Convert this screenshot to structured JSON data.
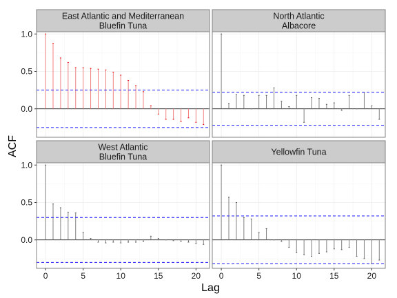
{
  "figure": {
    "xlabel": "Lag",
    "ylabel": "ACF"
  },
  "colors": {
    "strip_bg": "#cccccc",
    "panel_border": "#808080",
    "grid": "#ececec",
    "bar_default": "#7f7f7f",
    "bar_highlight": "#f08080",
    "tip_highlight": "#e60000",
    "ci_line": "#1a1aff",
    "zero_line": "#000000"
  },
  "chart_data": [
    {
      "type": "bar",
      "title": "East Atlantic and Mediterranean\nBluefin Tuna",
      "x": [
        0,
        1,
        2,
        3,
        4,
        5,
        6,
        7,
        8,
        9,
        10,
        11,
        12,
        13,
        14,
        15,
        16,
        17,
        18,
        19,
        20,
        21
      ],
      "values": [
        1.0,
        0.87,
        0.68,
        0.62,
        0.55,
        0.55,
        0.54,
        0.53,
        0.52,
        0.49,
        0.45,
        0.38,
        0.31,
        0.23,
        0.04,
        -0.07,
        -0.14,
        -0.14,
        -0.17,
        -0.12,
        -0.18,
        -0.21
      ],
      "highlight": [
        true,
        true,
        true,
        true,
        true,
        true,
        true,
        true,
        true,
        true,
        true,
        true,
        true,
        true,
        true,
        true,
        true,
        true,
        true,
        true,
        true,
        true
      ],
      "ci": [
        0.25,
        -0.25
      ],
      "xlim": [
        -1.2,
        21.8
      ],
      "ylim": [
        -0.38,
        1.03
      ]
    },
    {
      "type": "bar",
      "title": "North Atlantic\nAlbacore",
      "x": [
        0,
        1,
        2,
        3,
        4,
        5,
        6,
        7,
        8,
        9,
        10,
        11,
        12,
        13,
        14,
        15,
        16,
        17,
        18,
        19,
        20,
        21
      ],
      "values": [
        1.0,
        0.07,
        0.19,
        0.18,
        0.0,
        0.18,
        0.18,
        0.28,
        0.1,
        0.03,
        0.18,
        -0.18,
        0.15,
        0.14,
        0.06,
        0.08,
        -0.02,
        0.18,
        0.0,
        0.22,
        0.04,
        -0.14
      ],
      "highlight": [
        false,
        false,
        false,
        false,
        false,
        false,
        false,
        false,
        false,
        false,
        false,
        false,
        false,
        false,
        false,
        false,
        false,
        false,
        false,
        false,
        false,
        false
      ],
      "ci": [
        0.22,
        -0.22
      ],
      "xlim": [
        -1.2,
        21.8
      ],
      "ylim": [
        -0.38,
        1.03
      ]
    },
    {
      "type": "bar",
      "title": "West Atlantic\nBluefin Tuna",
      "x": [
        0,
        1,
        2,
        3,
        4,
        5,
        6,
        7,
        8,
        9,
        10,
        11,
        12,
        13,
        14,
        15,
        16,
        17,
        18,
        19,
        20,
        21
      ],
      "values": [
        1.0,
        0.48,
        0.43,
        0.37,
        0.36,
        0.1,
        0.02,
        -0.03,
        -0.04,
        -0.03,
        -0.04,
        -0.03,
        -0.03,
        -0.02,
        0.05,
        0.02,
        0.0,
        -0.01,
        -0.02,
        -0.03,
        -0.05,
        -0.06
      ],
      "highlight": [
        false,
        false,
        false,
        false,
        false,
        false,
        false,
        false,
        false,
        false,
        false,
        false,
        false,
        false,
        false,
        false,
        false,
        false,
        false,
        false,
        false,
        false
      ],
      "ci": [
        0.3,
        -0.3
      ],
      "xlim": [
        -1.2,
        21.8
      ],
      "ylim": [
        -0.38,
        1.03
      ]
    },
    {
      "type": "bar",
      "title": "Yellowfin Tuna",
      "x": [
        0,
        1,
        2,
        3,
        4,
        5,
        6,
        7,
        8,
        9,
        10,
        11,
        12,
        13,
        14,
        15,
        16,
        17,
        18,
        19,
        20,
        21
      ],
      "values": [
        1.0,
        0.57,
        0.5,
        0.3,
        0.28,
        0.1,
        0.15,
        0.0,
        -0.02,
        -0.1,
        -0.17,
        -0.2,
        -0.22,
        -0.18,
        -0.16,
        -0.12,
        -0.13,
        -0.1,
        -0.22,
        -0.25,
        -0.32,
        -0.27
      ],
      "highlight": [
        false,
        false,
        false,
        false,
        false,
        false,
        false,
        false,
        false,
        false,
        false,
        false,
        false,
        false,
        false,
        false,
        false,
        false,
        false,
        false,
        false,
        false
      ],
      "ci": [
        0.32,
        -0.32
      ],
      "xlim": [
        -1.2,
        21.8
      ],
      "ylim": [
        -0.38,
        1.03
      ]
    }
  ],
  "axes": {
    "x_ticks": [
      0,
      5,
      10,
      15,
      20
    ],
    "y_ticks": [
      0.0,
      0.5,
      1.0
    ],
    "y_tick_labels": [
      "0.0",
      "0.5",
      "1.0"
    ]
  }
}
